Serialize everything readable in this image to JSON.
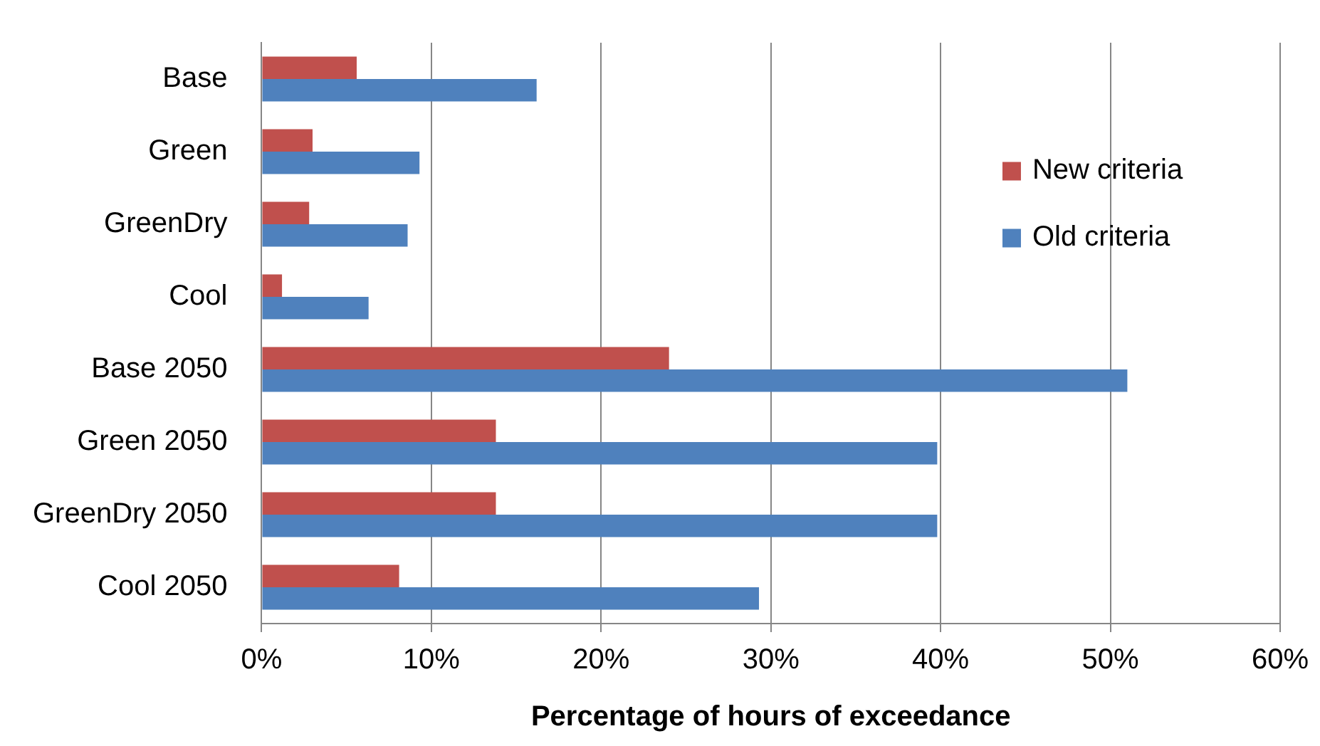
{
  "chart_data": {
    "type": "bar",
    "orientation": "horizontal",
    "xlabel": "Percentage of hours of exceedance",
    "categories": [
      "Base",
      "Green",
      "GreenDry",
      "Cool",
      "Base 2050",
      "Green 2050",
      "GreenDry 2050",
      "Cool 2050"
    ],
    "series": [
      {
        "name": "New criteria",
        "color": "#c0504d",
        "values": [
          5.6,
          3.0,
          2.8,
          1.2,
          24.0,
          13.8,
          13.8,
          8.1
        ]
      },
      {
        "name": "Old criteria",
        "color": "#4f81bd",
        "values": [
          16.2,
          9.3,
          8.6,
          6.3,
          51.0,
          39.8,
          39.8,
          29.3
        ]
      }
    ],
    "xlim": [
      0,
      60
    ],
    "xticks": [
      {
        "value": 0,
        "label": "0%"
      },
      {
        "value": 10,
        "label": "10%"
      },
      {
        "value": 20,
        "label": "20%"
      },
      {
        "value": 30,
        "label": "30%"
      },
      {
        "value": 40,
        "label": "40%"
      },
      {
        "value": 50,
        "label": "50%"
      },
      {
        "value": 60,
        "label": "60%"
      }
    ],
    "grid": "x",
    "legend": "right"
  }
}
